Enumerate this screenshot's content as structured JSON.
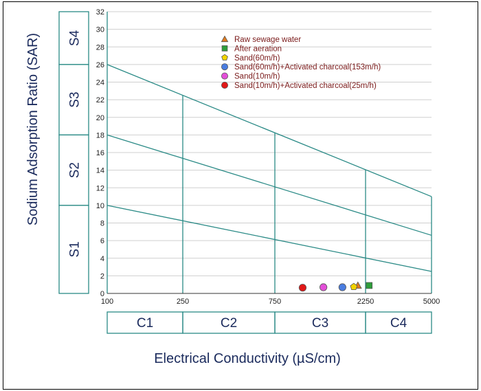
{
  "chart_data": {
    "type": "scatter",
    "title": "",
    "xlabel": "Electrical Conductivity (µS/cm)",
    "ylabel": "Sodium Adsorption Ratio (SAR)",
    "x_ticks": [
      "100",
      "250",
      "750",
      "2250",
      "5000"
    ],
    "x_scale": "piecewise-log (US Salinity Laboratory diagram)",
    "y_ticks": [
      0,
      2,
      4,
      6,
      8,
      10,
      12,
      14,
      16,
      18,
      20,
      22,
      24,
      26,
      28,
      30,
      32
    ],
    "ylim": [
      0,
      32
    ],
    "grid": "horizontal gridlines every 2 SAR units",
    "salinity_classes": [
      "C1",
      "C2",
      "C3",
      "C4"
    ],
    "sodium_classes": [
      "S1",
      "S2",
      "S3",
      "S4"
    ],
    "sodium_class_bounds_at_left_edge": [
      0,
      10,
      18,
      26,
      32
    ],
    "class_boundaries": [
      {
        "from": [
          100,
          10
        ],
        "to": [
          5000,
          2.5
        ]
      },
      {
        "from": [
          100,
          18
        ],
        "to": [
          5000,
          6.6
        ]
      },
      {
        "from": [
          100,
          26
        ],
        "to": [
          5000,
          11.0
        ]
      }
    ],
    "vertical_dividers_ec": [
      250,
      750,
      2250
    ],
    "legend_position": "top-center",
    "series": [
      {
        "name": "Raw sewage water",
        "marker": "triangle",
        "color": "#e07b1f",
        "x": 2050,
        "y": 0.9
      },
      {
        "name": "After aeration",
        "marker": "square",
        "color": "#2e9e3a",
        "x": 2350,
        "y": 0.9
      },
      {
        "name": "Sand(60m/h)",
        "marker": "pentagon",
        "color": "#f2d400",
        "x": 1950,
        "y": 0.75
      },
      {
        "name": "Sand(60m/h)+Activated charcoal(153m/h)",
        "marker": "circle",
        "color": "#4a7de0",
        "x": 1700,
        "y": 0.7
      },
      {
        "name": "Sand(10m/h)",
        "marker": "circle",
        "color": "#e34fd8",
        "x": 1350,
        "y": 0.7
      },
      {
        "name": "Sand(10m/h)+Activated charcoal(25m/h)",
        "marker": "circle",
        "color": "#e01818",
        "x": 1050,
        "y": 0.65
      }
    ]
  },
  "colors": {
    "boundary_line": "#2a8a86",
    "grid_line": "#cfcfcf",
    "label_text": "#1a2a5c",
    "legend_text": "#7a1a1a"
  }
}
